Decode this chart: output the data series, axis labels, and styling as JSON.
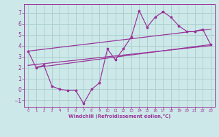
{
  "xlabel": "Windchill (Refroidissement éolien,°C)",
  "bg_color": "#cce8e8",
  "grid_color": "#aacccc",
  "line_color": "#993399",
  "xlim": [
    -0.5,
    23.5
  ],
  "ylim": [
    -1.6,
    7.8
  ],
  "xticks": [
    0,
    1,
    2,
    3,
    4,
    5,
    6,
    7,
    8,
    9,
    10,
    11,
    12,
    13,
    14,
    15,
    16,
    17,
    18,
    19,
    20,
    21,
    22,
    23
  ],
  "yticks": [
    -1,
    0,
    1,
    2,
    3,
    4,
    5,
    6,
    7
  ],
  "line1_x": [
    0,
    1,
    2,
    3,
    4,
    5,
    6,
    7,
    8,
    9,
    10,
    11,
    12,
    13,
    14,
    15,
    16,
    17,
    18,
    19,
    20,
    21,
    22,
    23
  ],
  "line1_y": [
    3.5,
    2.0,
    2.2,
    0.3,
    0.0,
    -0.1,
    -0.1,
    -1.3,
    -0.0,
    0.6,
    3.7,
    2.7,
    3.7,
    4.8,
    7.2,
    5.7,
    6.6,
    7.1,
    6.6,
    5.8,
    5.3,
    5.3,
    5.5,
    4.1
  ],
  "line2_x": [
    0,
    23
  ],
  "line2_y": [
    2.2,
    4.0
  ],
  "line3_x": [
    0,
    23
  ],
  "line3_y": [
    3.5,
    5.5
  ],
  "line4_x": [
    1,
    23
  ],
  "line4_y": [
    2.0,
    4.1
  ]
}
